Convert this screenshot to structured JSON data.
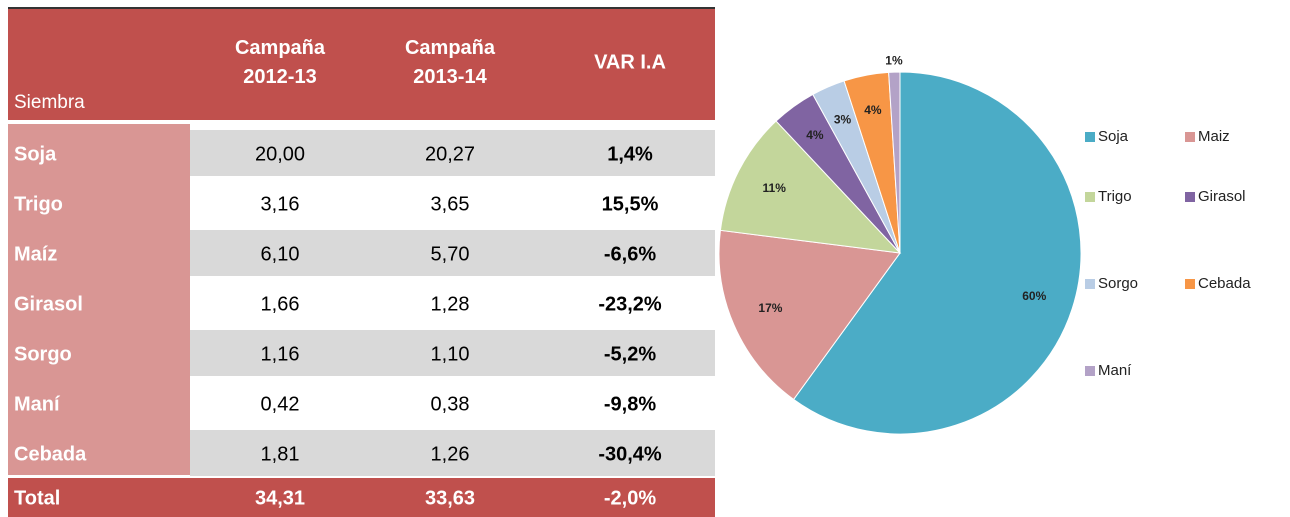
{
  "table": {
    "header": {
      "label": "Siembra",
      "columns": [
        [
          "Campaña",
          "2012-13"
        ],
        [
          "Campaña",
          "2013-14"
        ],
        [
          "VAR I.A"
        ]
      ]
    },
    "rows": [
      [
        "Soja",
        "20,00",
        "20,27",
        "1,4%"
      ],
      [
        "Trigo",
        "3,16",
        "3,65",
        "15,5%"
      ],
      [
        "Maíz",
        "6,10",
        "5,70",
        "-6,6%"
      ],
      [
        "Girasol",
        "1,66",
        "1,28",
        "-23,2%"
      ],
      [
        "Sorgo",
        "1,16",
        "1,10",
        "-5,2%"
      ],
      [
        "Maní",
        "0,42",
        "0,38",
        "-9,8%"
      ],
      [
        "Cebada",
        "1,81",
        "1,26",
        "-30,4%"
      ]
    ],
    "total": [
      "Total",
      "34,31",
      "33,63",
      "-2,0%"
    ]
  },
  "chart_data": {
    "type": "pie",
    "categories": [
      "Soja",
      "Maiz",
      "Trigo",
      "Girasol",
      "Sorgo",
      "Cebada",
      "Maní"
    ],
    "values": [
      60,
      17,
      11,
      4,
      3,
      4,
      1
    ],
    "value_labels": [
      "60%",
      "17%",
      "11%",
      "4%",
      "3%",
      "4%",
      "1%"
    ],
    "colors": [
      "#4bacc6",
      "#d99694",
      "#c3d69b",
      "#8064a2",
      "#b9cde5",
      "#f79646",
      "#b3a2c7"
    ],
    "legend": "right"
  }
}
